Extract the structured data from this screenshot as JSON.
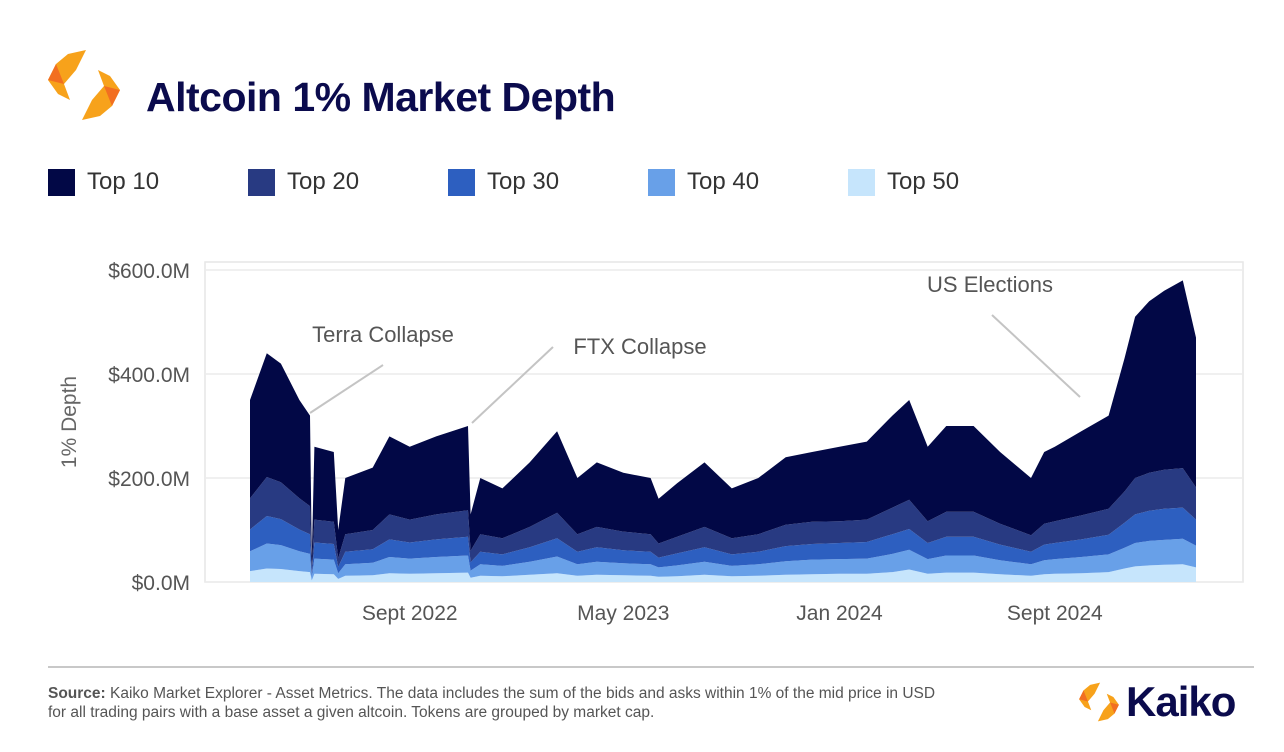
{
  "header": {
    "title": "Altcoin 1% Market Depth",
    "logo": "kaiko-hexagon-logo"
  },
  "colors": {
    "Top 10": "#020846",
    "Top 20": "#283a82",
    "Top 30": "#2d5fc0",
    "Top 40": "#68a0e8",
    "Top 50": "#c6e5fc",
    "title": "#0b0b4d",
    "logo_orange": "#f7931e"
  },
  "chart_data": {
    "type": "area",
    "stacked": true,
    "title": "Altcoin 1% Market Depth",
    "ylabel": "1% Depth",
    "xlabel": "",
    "ylim": [
      0,
      600
    ],
    "y_unit": "$M",
    "yticks": [
      "$0.0M",
      "$200.0M",
      "$400.0M",
      "$600.0M"
    ],
    "ytick_values": [
      0,
      200,
      400,
      600
    ],
    "xticks": [
      "Sept 2022",
      "May 2023",
      "Jan 2024",
      "Sept 2024"
    ],
    "xtick_dates": [
      "2022-09-01",
      "2023-05-01",
      "2024-01-01",
      "2024-09-01"
    ],
    "xlim": [
      "2022-03-04",
      "2025-02-08"
    ],
    "grid": "horizontal",
    "legend_position": "top",
    "legend": [
      "Top 10",
      "Top 20",
      "Top 30",
      "Top 40",
      "Top 50"
    ],
    "stack_order_bottom_to_top": [
      "Top 50",
      "Top 40",
      "Top 30",
      "Top 20",
      "Top 10"
    ],
    "x": [
      "2022-03-04",
      "2022-03-23",
      "2022-04-08",
      "2022-04-29",
      "2022-05-11",
      "2022-05-13",
      "2022-05-16",
      "2022-06-07",
      "2022-06-12",
      "2022-06-20",
      "2022-07-21",
      "2022-08-09",
      "2022-09-01",
      "2022-10-01",
      "2022-11-06",
      "2022-11-09",
      "2022-11-20",
      "2022-12-15",
      "2023-01-15",
      "2023-02-15",
      "2023-03-10",
      "2023-04-01",
      "2023-05-01",
      "2023-06-01",
      "2023-06-10",
      "2023-07-01",
      "2023-08-01",
      "2023-09-01",
      "2023-10-01",
      "2023-11-01",
      "2023-12-01",
      "2024-01-01",
      "2024-02-01",
      "2024-03-01",
      "2024-03-20",
      "2024-04-10",
      "2024-05-01",
      "2024-06-01",
      "2024-07-01",
      "2024-08-05",
      "2024-08-20",
      "2024-09-01",
      "2024-10-01",
      "2024-11-01",
      "2024-11-19",
      "2024-12-01",
      "2024-12-17",
      "2025-01-03",
      "2025-01-24",
      "2025-02-08"
    ],
    "series": [
      {
        "name": "Top 10",
        "values": [
          189,
          238,
          228,
          189,
          174,
          26,
          140,
          134,
          54,
          108,
          120,
          150,
          140,
          150,
          162,
          70,
          108,
          96,
          124,
          157,
          108,
          124,
          113,
          108,
          86,
          103,
          124,
          96,
          108,
          130,
          134,
          143,
          150,
          177,
          192,
          143,
          165,
          165,
          138,
          110,
          138,
          143,
          162,
          179,
          256,
          310,
          330,
          344,
          361,
          288
        ]
      },
      {
        "name": "Top 20",
        "values": [
          60,
          75,
          71,
          60,
          54,
          9,
          44,
          43,
          17,
          34,
          37,
          48,
          44,
          48,
          51,
          22,
          34,
          31,
          39,
          49,
          34,
          39,
          36,
          34,
          27,
          32,
          39,
          31,
          34,
          41,
          43,
          42,
          43,
          51,
          56,
          42,
          48,
          48,
          40,
          32,
          40,
          42,
          46,
          50,
          60,
          70,
          73,
          75,
          76,
          62
        ]
      },
      {
        "name": "Top 30",
        "values": [
          42,
          53,
          50,
          42,
          38,
          6,
          31,
          30,
          12,
          24,
          26,
          34,
          31,
          34,
          36,
          16,
          24,
          22,
          28,
          35,
          24,
          28,
          25,
          24,
          19,
          23,
          28,
          22,
          24,
          29,
          30,
          31,
          32,
          38,
          40,
          31,
          36,
          36,
          30,
          24,
          30,
          31,
          34,
          38,
          48,
          55,
          58,
          60,
          60,
          50
        ]
      },
      {
        "name": "Top 40",
        "values": [
          38,
          48,
          46,
          38,
          35,
          6,
          29,
          28,
          11,
          22,
          24,
          31,
          29,
          31,
          33,
          14,
          22,
          20,
          25,
          32,
          22,
          25,
          23,
          22,
          18,
          21,
          25,
          20,
          22,
          26,
          28,
          28,
          29,
          35,
          38,
          28,
          33,
          33,
          27,
          22,
          27,
          28,
          31,
          34,
          40,
          45,
          47,
          48,
          49,
          42
        ]
      },
      {
        "name": "Top 50",
        "values": [
          21,
          26,
          25,
          21,
          19,
          3,
          16,
          15,
          6,
          12,
          13,
          17,
          16,
          17,
          18,
          8,
          12,
          11,
          14,
          17,
          12,
          14,
          13,
          12,
          10,
          11,
          14,
          11,
          12,
          14,
          15,
          16,
          16,
          19,
          24,
          16,
          18,
          18,
          15,
          12,
          15,
          16,
          17,
          19,
          26,
          30,
          32,
          33,
          34,
          28
        ]
      }
    ],
    "annotations": [
      {
        "text": "Terra Collapse",
        "date": "2022-05-11"
      },
      {
        "text": "FTX Collapse",
        "date": "2022-11-09"
      },
      {
        "text": "US Elections",
        "date": "2024-11-05"
      }
    ]
  },
  "footer": {
    "source_label": "Source:",
    "source_text": " Kaiko Market Explorer - Asset Metrics. The data includes the sum of the bids and asks within 1% of the mid price in USD",
    "source_text_2": "for all trading pairs with a base asset  a given altcoin. Tokens are grouped by market cap.",
    "brand": "Kaiko"
  }
}
